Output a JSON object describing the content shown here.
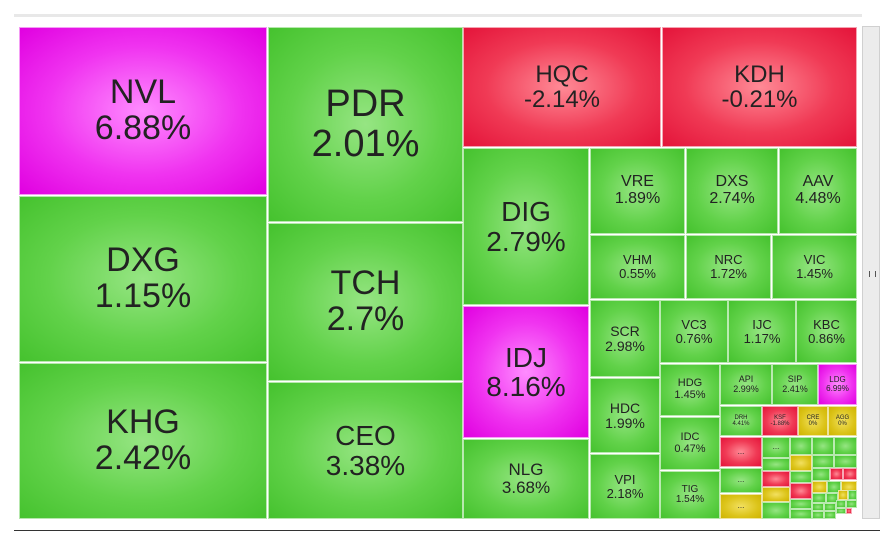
{
  "tiles": [
    {
      "ticker": "NVL",
      "change": "6.88%"
    },
    {
      "ticker": "DXG",
      "change": "1.15%"
    },
    {
      "ticker": "KHG",
      "change": "2.42%"
    },
    {
      "ticker": "PDR",
      "change": "2.01%"
    },
    {
      "ticker": "TCH",
      "change": "2.7%"
    },
    {
      "ticker": "CEO",
      "change": "3.38%"
    },
    {
      "ticker": "HQC",
      "change": "-2.14%"
    },
    {
      "ticker": "KDH",
      "change": "-0.21%"
    },
    {
      "ticker": "DIG",
      "change": "2.79%"
    },
    {
      "ticker": "IDJ",
      "change": "8.16%"
    },
    {
      "ticker": "NLG",
      "change": "3.68%"
    },
    {
      "ticker": "VRE",
      "change": "1.89%"
    },
    {
      "ticker": "DXS",
      "change": "2.74%"
    },
    {
      "ticker": "AAV",
      "change": "4.48%"
    },
    {
      "ticker": "VHM",
      "change": "0.55%"
    },
    {
      "ticker": "NRC",
      "change": "1.72%"
    },
    {
      "ticker": "VIC",
      "change": "1.45%"
    },
    {
      "ticker": "SCR",
      "change": "2.98%"
    },
    {
      "ticker": "VC3",
      "change": "0.76%"
    },
    {
      "ticker": "IJC",
      "change": "1.17%"
    },
    {
      "ticker": "KBC",
      "change": "0.86%"
    },
    {
      "ticker": "HDC",
      "change": "1.99%"
    },
    {
      "ticker": "VPI",
      "change": "2.18%"
    },
    {
      "ticker": "HDG",
      "change": "1.45%"
    },
    {
      "ticker": "API",
      "change": "2.99%"
    },
    {
      "ticker": "SIP",
      "change": "2.41%"
    },
    {
      "ticker": "LDG",
      "change": "6.99%"
    },
    {
      "ticker": "IDC",
      "change": "0.47%"
    },
    {
      "ticker": "TIG",
      "change": "1.54%"
    },
    {
      "ticker": "DRH",
      "change": "4.41%"
    },
    {
      "ticker": "KSF",
      "change": "-1.88%"
    },
    {
      "ticker": "CRE",
      "change": "0%"
    },
    {
      "ticker": "AGG",
      "change": "0%"
    }
  ],
  "more": [
    "...",
    "...",
    "...",
    "..."
  ]
}
